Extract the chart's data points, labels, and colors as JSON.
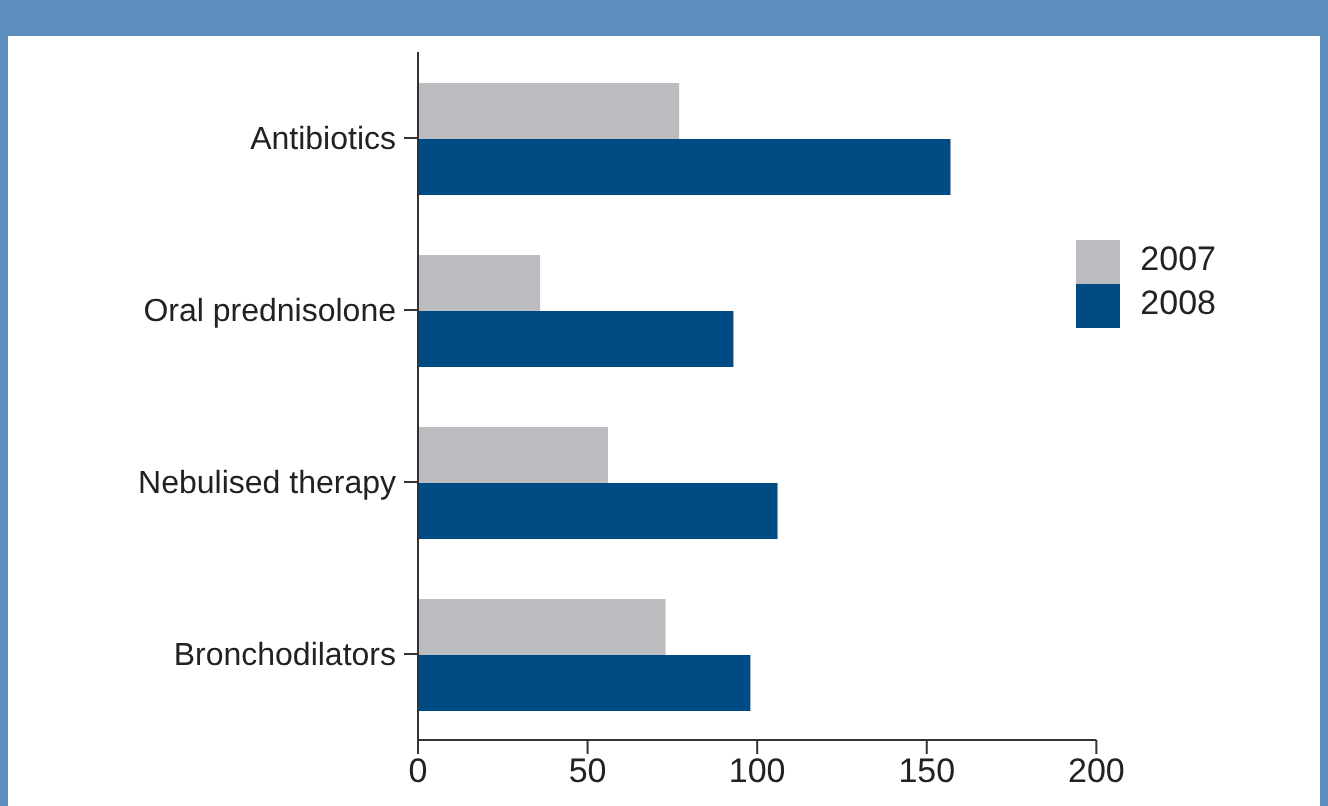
{
  "chart_data": {
    "type": "bar",
    "orientation": "horizontal",
    "categories": [
      "Antibiotics",
      "Oral prednisolone",
      "Nebulised therapy",
      "Bronchodilators"
    ],
    "series": [
      {
        "name": "2007",
        "color": "#bcbdc0",
        "values": [
          77,
          36,
          56,
          73
        ]
      },
      {
        "name": "2008",
        "color": "#004b84",
        "values": [
          157,
          93,
          106,
          98
        ]
      }
    ],
    "xlim": [
      0,
      200
    ],
    "xticks": [
      0,
      50,
      100,
      150,
      200
    ],
    "legend": "right"
  }
}
